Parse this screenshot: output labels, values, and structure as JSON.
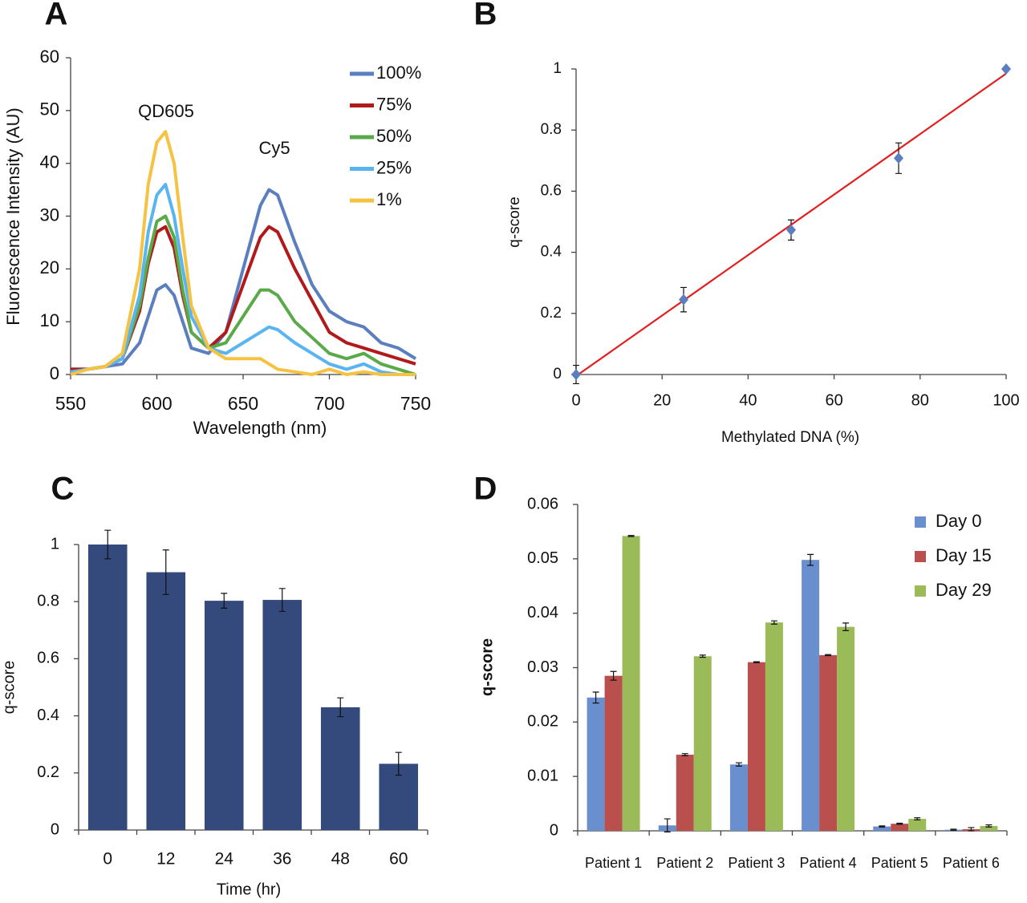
{
  "chart_data": [
    {
      "type": "line",
      "panel": "A",
      "xlabel": "Wavelength (nm)",
      "ylabel": "Fluorescence Intensity (AU)",
      "annotations": [
        "QD605",
        "Cy5"
      ],
      "legend": "upper right",
      "xlim": [
        550,
        750
      ],
      "xticks": [
        550,
        600,
        650,
        700,
        750
      ],
      "ylim": [
        0,
        60
      ],
      "yticks": [
        0,
        10,
        20,
        30,
        40,
        50,
        60
      ],
      "x": [
        550,
        560,
        570,
        580,
        590,
        595,
        600,
        605,
        610,
        615,
        620,
        630,
        640,
        650,
        660,
        665,
        670,
        680,
        690,
        700,
        710,
        720,
        730,
        740,
        750
      ],
      "series": [
        {
          "name": "100%",
          "color": "#5b7fbe",
          "values": [
            1,
            1,
            1.5,
            2,
            6,
            11,
            16,
            17,
            15,
            10,
            5,
            4,
            8,
            20,
            32,
            35,
            34,
            25,
            17,
            12,
            10,
            9,
            6,
            5,
            3
          ]
        },
        {
          "name": "75%",
          "color": "#b01a1a",
          "values": [
            1,
            1,
            1.5,
            3,
            12,
            21,
            27,
            28,
            24,
            15,
            8,
            5,
            8,
            17,
            26,
            28,
            27,
            20,
            14,
            8,
            6,
            5,
            4,
            3,
            2
          ]
        },
        {
          "name": "50%",
          "color": "#5aaa4a",
          "values": [
            0.5,
            1,
            1.5,
            3,
            13,
            22,
            29,
            30,
            26,
            16,
            8,
            5,
            6,
            11,
            16,
            16,
            15,
            10,
            7,
            4,
            3,
            4,
            2,
            1,
            0
          ]
        },
        {
          "name": "25%",
          "color": "#5ab4f0",
          "values": [
            0.5,
            1,
            1.5,
            3,
            15,
            27,
            34,
            36,
            30,
            20,
            11,
            5,
            4,
            6,
            8,
            9,
            8.5,
            6,
            4,
            2,
            1,
            2,
            0.5,
            0,
            0
          ]
        },
        {
          "name": "1%",
          "color": "#f5c242",
          "values": [
            0,
            1,
            1.5,
            4,
            20,
            36,
            44,
            46,
            40,
            26,
            13,
            5,
            3,
            3,
            3,
            2,
            1,
            0.5,
            0,
            1,
            0,
            0.5,
            0,
            0,
            0
          ]
        }
      ]
    },
    {
      "type": "scatter",
      "panel": "B",
      "xlabel": "Methylated DNA (%)",
      "ylabel": "q-score",
      "xlim": [
        0,
        100
      ],
      "xticks": [
        0,
        20,
        40,
        60,
        80,
        100
      ],
      "ylim": [
        0,
        1
      ],
      "yticks": [
        0,
        0.2,
        0.4,
        0.6,
        0.8,
        1
      ],
      "x": [
        0,
        25,
        50,
        75,
        100
      ],
      "values": [
        0,
        0.245,
        0.473,
        0.708,
        1
      ],
      "errors": [
        0.03,
        0.04,
        0.033,
        0.05,
        0.005
      ],
      "color": "#5b7fbe",
      "fit_x": [
        0,
        100
      ],
      "fit_y": [
        -0.005,
        0.985
      ],
      "fit_color": "#e02020"
    },
    {
      "type": "bar",
      "panel": "C",
      "xlabel": "Time (hr)",
      "ylabel": "q-score",
      "categories": [
        "0",
        "12",
        "24",
        "36",
        "48",
        "60"
      ],
      "values": [
        1,
        0.903,
        0.803,
        0.806,
        0.43,
        0.232
      ],
      "errors": [
        0.05,
        0.078,
        0.026,
        0.04,
        0.033,
        0.04
      ],
      "color": "#34497c",
      "ylim": [
        0,
        1
      ],
      "yticks": [
        0,
        0.2,
        0.4,
        0.6,
        0.8,
        1
      ]
    },
    {
      "type": "bar",
      "panel": "D",
      "ylabel": "q-score",
      "legend": "upper right",
      "categories": [
        "Patient 1",
        "Patient 2",
        "Patient 3",
        "Patient 4",
        "Patient 5",
        "Patient 6"
      ],
      "series": [
        {
          "name": "Day 0",
          "color": "#6a8fcf",
          "values": [
            0.0245,
            0.001,
            0.0122,
            0.0498,
            0.0008,
            0.0002
          ],
          "errors": [
            0.001,
            0.0012,
            0.0003,
            0.001,
            0.0001,
            0.0001
          ]
        },
        {
          "name": "Day 15",
          "color": "#b9504e",
          "values": [
            0.0285,
            0.014,
            0.031,
            0.0323,
            0.0013,
            0.0003
          ],
          "errors": [
            0.0008,
            0.0002,
            0.0001,
            0.0001,
            0.0001,
            0.0003
          ]
        },
        {
          "name": "Day 29",
          "color": "#9bbb59",
          "values": [
            0.0542,
            0.0321,
            0.0383,
            0.0375,
            0.0022,
            0.0009
          ],
          "errors": [
            0.0001,
            0.0002,
            0.0003,
            0.0007,
            0.0002,
            0.0002
          ]
        }
      ],
      "ylim": [
        0,
        0.06
      ],
      "yticks": [
        0,
        0.01,
        0.02,
        0.03,
        0.04,
        0.05,
        0.06
      ]
    }
  ]
}
